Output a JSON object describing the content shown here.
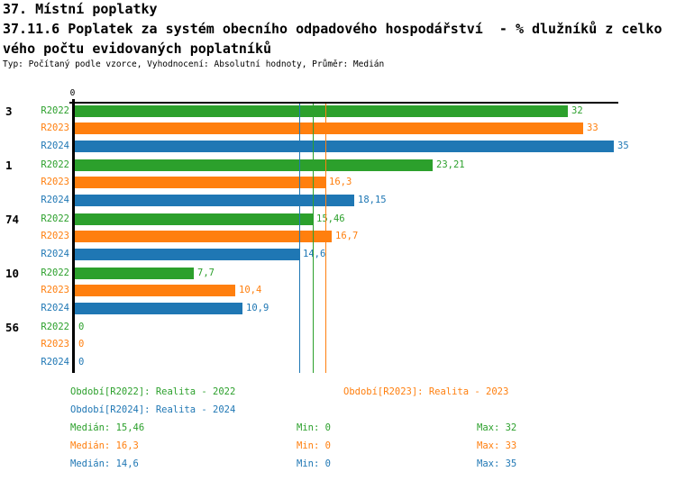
{
  "header": {
    "title": "37. Místní poplatky",
    "subtitle_line1": "37.11.6 Poplatek za systém obecního odpadového hospodářství  - % dlužníků z celko",
    "subtitle_line2": "vého počtu evidovaných poplatníků",
    "meta": "Typ: Počítaný podle vzorce, Vyhodnocení: Absolutní hodnoty, Průměr: Medián"
  },
  "colors": {
    "R2022": "#2ca02c",
    "R2023": "#ff7f0e",
    "R2024": "#1f77b4",
    "axis": "#000000"
  },
  "chart_data": {
    "type": "bar",
    "orientation": "horizontal",
    "xlim": [
      0,
      35.2
    ],
    "grid": false,
    "axis_zero_label": "0",
    "series_names": [
      "R2022",
      "R2023",
      "R2024"
    ],
    "groups": [
      {
        "label": "3",
        "values": [
          32,
          33,
          35
        ],
        "display_values": [
          "32",
          "33",
          "35"
        ]
      },
      {
        "label": "1",
        "values": [
          23.21,
          16.3,
          18.15
        ],
        "display_values": [
          "23,21",
          "16,3",
          "18,15"
        ]
      },
      {
        "label": "74",
        "values": [
          15.46,
          16.7,
          14.6
        ],
        "display_values": [
          "15,46",
          "16,7",
          "14,6"
        ]
      },
      {
        "label": "10",
        "values": [
          7.7,
          10.4,
          10.9
        ],
        "display_values": [
          "7,7",
          "10,4",
          "10,9"
        ]
      },
      {
        "label": "56",
        "values": [
          0,
          0,
          0
        ],
        "display_values": [
          "0",
          "0",
          "0"
        ]
      }
    ],
    "median_lines": [
      {
        "series": "R2024",
        "value": 14.6
      },
      {
        "series": "R2022",
        "value": 15.46
      },
      {
        "series": "R2023",
        "value": 16.3
      }
    ],
    "legend": [
      {
        "series": "R2022",
        "label": "Období[R2022]: Realita - 2022",
        "col": 0,
        "row": 0
      },
      {
        "series": "R2023",
        "label": "Období[R2023]: Realita - 2023",
        "col": 1,
        "row": 0
      },
      {
        "series": "R2024",
        "label": "Období[R2024]: Realita - 2024",
        "col": 0,
        "row": 1
      }
    ],
    "stats": [
      {
        "series": "R2022",
        "median": "Medián: 15,46",
        "min": "Min: 0",
        "max": "Max: 32"
      },
      {
        "series": "R2023",
        "median": "Medián: 16,3",
        "min": "Min: 0",
        "max": "Max: 33"
      },
      {
        "series": "R2024",
        "median": "Medián: 14,6",
        "min": "Min: 0",
        "max": "Max: 35"
      }
    ]
  }
}
